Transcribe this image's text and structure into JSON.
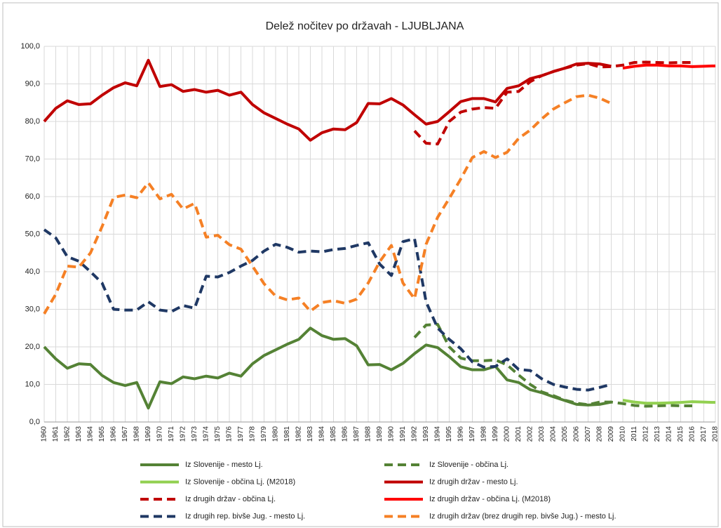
{
  "chart_data": {
    "type": "line",
    "title": "Delež nočitev po državah - LJUBLJANA",
    "categories": [
      "1960",
      "1961",
      "1962",
      "1963",
      "1964",
      "1965",
      "1966",
      "1967",
      "1968",
      "1969",
      "1970",
      "1971",
      "1972",
      "1973",
      "1974",
      "1975",
      "1976",
      "1977",
      "1978",
      "1979",
      "1980",
      "1981",
      "1982",
      "1983",
      "1984",
      "1985",
      "1986",
      "1987",
      "1988",
      "1989",
      "1990",
      "1991",
      "1992",
      "1993",
      "1994",
      "1995",
      "1996",
      "1997",
      "1998",
      "1999",
      "2000",
      "2001",
      "2002",
      "2003",
      "2004",
      "2005",
      "2006",
      "2007",
      "2008",
      "2009",
      "2010",
      "2011",
      "2012",
      "2013",
      "2014",
      "2015",
      "2016",
      "2017",
      "2018"
    ],
    "ylim": [
      0,
      100
    ],
    "yticks": [
      {
        "value": 0,
        "label": "0,0"
      },
      {
        "value": 10,
        "label": "10,0"
      },
      {
        "value": 20,
        "label": "20,0"
      },
      {
        "value": 30,
        "label": "30,0"
      },
      {
        "value": 40,
        "label": "40,0"
      },
      {
        "value": 50,
        "label": "50,0"
      },
      {
        "value": 60,
        "label": "60,0"
      },
      {
        "value": 70,
        "label": "70,0"
      },
      {
        "value": 80,
        "label": "80,0"
      },
      {
        "value": 90,
        "label": "90,0"
      },
      {
        "value": 100,
        "label": "100,0"
      }
    ],
    "grid": true,
    "legend": "bottom",
    "series": [
      {
        "name": "Iz Slovenije - mesto Lj.",
        "color": "#548235",
        "dash": false,
        "values": [
          20,
          16.8,
          14.3,
          15.5,
          15.3,
          12.4,
          10.5,
          9.7,
          10.5,
          3.7,
          10.7,
          10.2,
          12,
          11.5,
          12.2,
          11.7,
          13,
          12.2,
          15.5,
          17.7,
          19.2,
          20.7,
          22,
          25,
          23,
          22,
          22.2,
          20.3,
          15.2,
          15.3,
          13.9,
          15.6,
          18.2,
          20.5,
          19.8,
          17.4,
          14.7,
          13.9,
          13.9,
          14.8,
          11.2,
          10.5,
          8.6,
          7.8,
          6.7,
          5.7,
          4.7,
          4.5,
          4.7,
          5.3,
          null,
          null,
          null,
          null,
          null,
          null,
          null,
          null,
          null
        ]
      },
      {
        "name": "Iz Slovenije - občina Lj.",
        "color": "#548235",
        "dash": true,
        "values": [
          null,
          null,
          null,
          null,
          null,
          null,
          null,
          null,
          null,
          null,
          null,
          null,
          null,
          null,
          null,
          null,
          null,
          null,
          null,
          null,
          null,
          null,
          null,
          null,
          null,
          null,
          null,
          null,
          null,
          null,
          null,
          null,
          22.5,
          25.8,
          26,
          20,
          17,
          16.3,
          16.3,
          16.5,
          15.2,
          12.5,
          10,
          8,
          7,
          5.8,
          5,
          4.6,
          5.3,
          5.3,
          4.9,
          4.4,
          4.2,
          4.3,
          4.4,
          4.3,
          4.3,
          null,
          null
        ]
      },
      {
        "name": "Iz Slovenije - občina Lj. (M2018)",
        "color": "#92d050",
        "dash": false,
        "values": [
          null,
          null,
          null,
          null,
          null,
          null,
          null,
          null,
          null,
          null,
          null,
          null,
          null,
          null,
          null,
          null,
          null,
          null,
          null,
          null,
          null,
          null,
          null,
          null,
          null,
          null,
          null,
          null,
          null,
          null,
          null,
          null,
          null,
          null,
          null,
          null,
          null,
          null,
          null,
          null,
          null,
          null,
          null,
          null,
          null,
          null,
          null,
          null,
          null,
          null,
          5.8,
          5.3,
          5,
          5,
          5.1,
          5.2,
          5.4,
          5.3,
          5.2
        ]
      },
      {
        "name": "Iz drugih držav - mesto Lj.",
        "color": "#c00000",
        "dash": false,
        "values": [
          80,
          83.5,
          85.5,
          84.5,
          84.7,
          87,
          89,
          90.3,
          89.5,
          96.3,
          89.3,
          89.8,
          88,
          88.5,
          87.8,
          88.3,
          87,
          87.8,
          84.5,
          82.3,
          80.8,
          79.3,
          78,
          75,
          77,
          78,
          77.8,
          79.7,
          84.8,
          84.7,
          86.1,
          84.4,
          81.8,
          79.3,
          80,
          82.6,
          85.3,
          86.1,
          86.1,
          85.2,
          88.8,
          89.5,
          91.4,
          92.2,
          93.3,
          94.2,
          95.3,
          95.5,
          95.3,
          94.7,
          null,
          null,
          null,
          null,
          null,
          null,
          null,
          null,
          null
        ]
      },
      {
        "name": "Iz drugih držav - občina Lj.",
        "color": "#c00000",
        "dash": true,
        "values": [
          null,
          null,
          null,
          null,
          null,
          null,
          null,
          null,
          null,
          null,
          null,
          null,
          null,
          null,
          null,
          null,
          null,
          null,
          null,
          null,
          null,
          null,
          null,
          null,
          null,
          null,
          null,
          null,
          null,
          null,
          null,
          null,
          77.5,
          74.2,
          74,
          80,
          82.5,
          83.3,
          83.7,
          83.5,
          87.8,
          88,
          90.6,
          92.2,
          93.3,
          94.2,
          95,
          95.4,
          94.5,
          94.6,
          95,
          95.7,
          95.8,
          95.7,
          95.6,
          95.7,
          95.7,
          null,
          null
        ]
      },
      {
        "name": "Iz drugih držav - občina Lj. (M2018)",
        "color": "#ff0000",
        "dash": false,
        "values": [
          null,
          null,
          null,
          null,
          null,
          null,
          null,
          null,
          null,
          null,
          null,
          null,
          null,
          null,
          null,
          null,
          null,
          null,
          null,
          null,
          null,
          null,
          null,
          null,
          null,
          null,
          null,
          null,
          null,
          null,
          null,
          null,
          null,
          null,
          null,
          null,
          null,
          null,
          null,
          null,
          null,
          null,
          null,
          null,
          null,
          null,
          null,
          null,
          null,
          null,
          94.2,
          94.7,
          95,
          95,
          94.8,
          94.8,
          94.6,
          94.7,
          94.8
        ]
      },
      {
        "name": "Iz drugih rep. bivše Jug. - mesto Lj.",
        "color": "#1f3864",
        "dash": true,
        "values": [
          51.2,
          49,
          44,
          42.8,
          40,
          37,
          30,
          29.8,
          29.8,
          32,
          29.8,
          29.4,
          31,
          30.3,
          38.8,
          38.6,
          39.8,
          41.5,
          43,
          45.5,
          47.3,
          46.5,
          45.2,
          45.5,
          45.3,
          45.9,
          46.2,
          47,
          47.7,
          42,
          39,
          48,
          48.8,
          32,
          25,
          22,
          19.5,
          16,
          14.6,
          14.8,
          16.8,
          14,
          13.7,
          11.5,
          10,
          9.3,
          8.7,
          8.5,
          9.2,
          10,
          null,
          null,
          null,
          null,
          null,
          null,
          null,
          null,
          null
        ]
      },
      {
        "name": "Iz drugih držav (brez drugih rep. bivše Jug.) - mesto Lj.",
        "color": "#f58025",
        "dash": true,
        "values": [
          28.8,
          34,
          41.5,
          41.2,
          45,
          52,
          59.8,
          60.4,
          59.7,
          63.7,
          59.4,
          60.6,
          56.7,
          58.2,
          49.2,
          49.7,
          47.2,
          46,
          41.5,
          36.8,
          33.5,
          32.5,
          33,
          29.5,
          31.8,
          32.3,
          31.6,
          32.7,
          37,
          42.7,
          47,
          37,
          32.8,
          47.3,
          54.5,
          59.5,
          64.7,
          70.4,
          72,
          70.4,
          71.8,
          75.5,
          77.7,
          80.7,
          83.3,
          85,
          86.6,
          87,
          86.2,
          84.8,
          null,
          null,
          null,
          null,
          null,
          null,
          null,
          null,
          null
        ]
      }
    ]
  }
}
